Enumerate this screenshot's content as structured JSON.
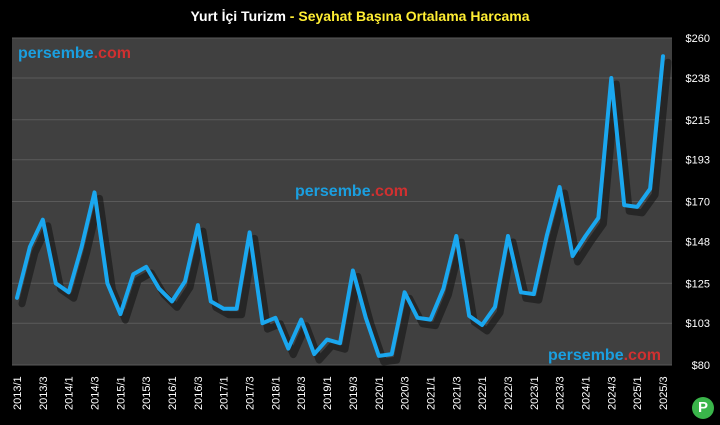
{
  "title_part1": "Yurt İçi Turizm",
  "title_sep": " - ",
  "title_part2": "Seyahat Başına Ortalama Harcama",
  "watermark": {
    "brand": "persembe",
    "tld": ".com",
    "brand_color": "#1a9fe0",
    "tld_color": "#d03030"
  },
  "badge_text": "P",
  "colors": {
    "line": "#1aa7ef",
    "plot_bg": "#404040",
    "grid": "#5a5a5a",
    "tick": "#ffffff"
  },
  "chart_data": {
    "type": "line",
    "title": "Yurt İçi Turizm - Seyahat Başına Ortalama Harcama",
    "xlabel": "",
    "ylabel": "",
    "ylim": [
      80,
      260
    ],
    "yticks": [
      "$80",
      "$103",
      "$125",
      "$148",
      "$170",
      "$193",
      "$215",
      "$238",
      "$260"
    ],
    "ytick_values": [
      80,
      103,
      125,
      148,
      170,
      193,
      215,
      238,
      260
    ],
    "xticks": [
      "2013/1",
      "2013/3",
      "2014/1",
      "2014/3",
      "2015/1",
      "2015/3",
      "2016/1",
      "2016/3",
      "2017/1",
      "2017/3",
      "2018/1",
      "2018/3",
      "2019/1",
      "2019/3",
      "2020/1",
      "2020/3",
      "2021/1",
      "2021/3",
      "2022/1",
      "2022/3",
      "2023/1",
      "2023/3",
      "2024/1",
      "2024/3",
      "2025/1",
      "2025/3"
    ],
    "grid": true,
    "series": [
      {
        "x": [
          "2013/1",
          "2013/2",
          "2013/3",
          "2013/4",
          "2014/1",
          "2014/2",
          "2014/3",
          "2014/4",
          "2015/1",
          "2015/2",
          "2015/3",
          "2015/4",
          "2016/1",
          "2016/2",
          "2016/3",
          "2016/4",
          "2017/1",
          "2017/2",
          "2017/3",
          "2017/4",
          "2018/1",
          "2018/2",
          "2018/3",
          "2018/4",
          "2019/1",
          "2019/2",
          "2019/3",
          "2019/4",
          "2020/1",
          "2020/2",
          "2020/3",
          "2020/4",
          "2021/1",
          "2021/2",
          "2021/3",
          "2021/4",
          "2022/1",
          "2022/2",
          "2022/3",
          "2022/4",
          "2023/1",
          "2023/2",
          "2023/3",
          "2023/4",
          "2024/1",
          "2024/2",
          "2024/3",
          "2024/4",
          "2025/1",
          "2025/2",
          "2025/3"
        ],
        "values": [
          117,
          145,
          160,
          125,
          120,
          145,
          175,
          125,
          108,
          130,
          134,
          122,
          115,
          126,
          157,
          115,
          111,
          111,
          153,
          103,
          106,
          89,
          105,
          86,
          94,
          92,
          132,
          106,
          85,
          86,
          120,
          106,
          105,
          122,
          151,
          107,
          102,
          112,
          151,
          120,
          119,
          151,
          178,
          140,
          151,
          161,
          238,
          168,
          167,
          177,
          250
        ]
      }
    ]
  }
}
